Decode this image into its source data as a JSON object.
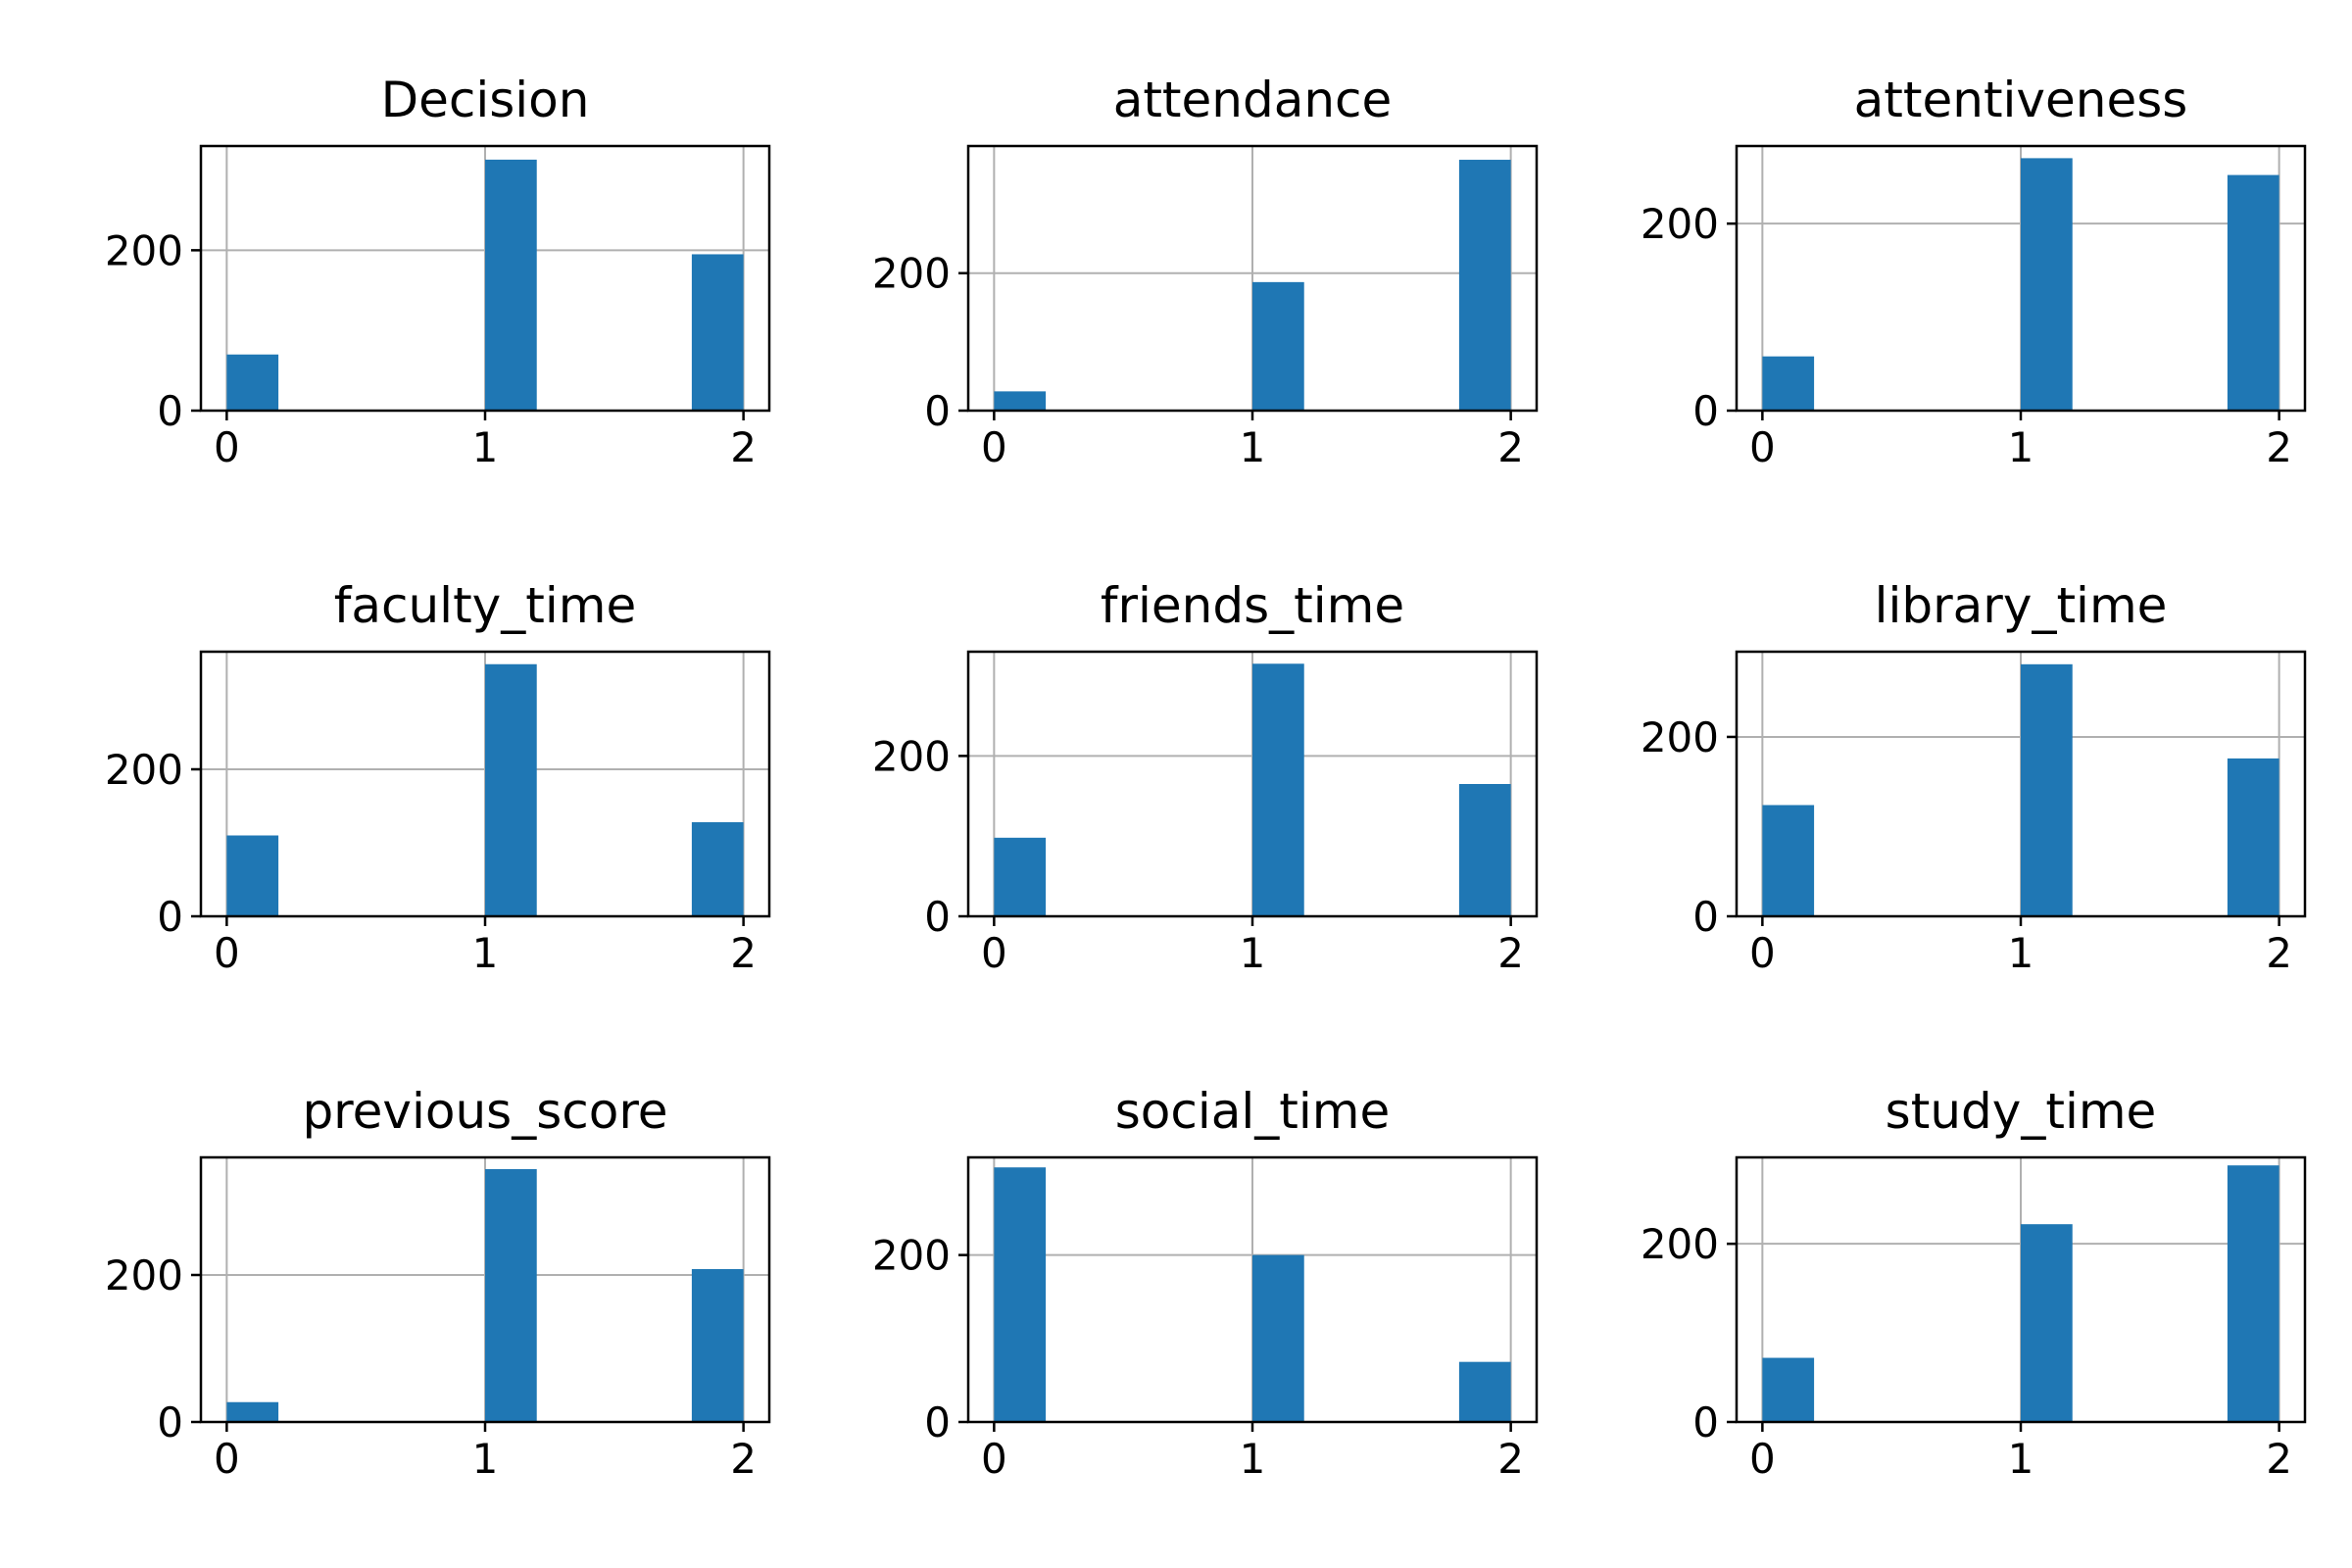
{
  "colors": {
    "bar": "#1f77b4",
    "grid": "#b0b0b0",
    "axis": "#000000"
  },
  "chart_data": [
    {
      "type": "bar",
      "title": "Decision",
      "ylim": [
        0,
        330
      ],
      "yticks": [
        0,
        200
      ],
      "xticks": [
        0,
        1,
        2
      ],
      "grid": true,
      "bins": [
        {
          "x0": 0.0,
          "x1": 0.2,
          "value": 70
        },
        {
          "x0": 1.0,
          "x1": 1.2,
          "value": 313
        },
        {
          "x0": 1.8,
          "x1": 2.0,
          "value": 195
        }
      ]
    },
    {
      "type": "bar",
      "title": "attendance",
      "ylim": [
        0,
        385
      ],
      "yticks": [
        0,
        200
      ],
      "xticks": [
        0,
        1,
        2
      ],
      "grid": true,
      "bins": [
        {
          "x0": 0.0,
          "x1": 0.2,
          "value": 28
        },
        {
          "x0": 1.0,
          "x1": 1.2,
          "value": 187
        },
        {
          "x0": 1.8,
          "x1": 2.0,
          "value": 365
        }
      ]
    },
    {
      "type": "bar",
      "title": "attentiveness",
      "ylim": [
        0,
        283
      ],
      "yticks": [
        0,
        200
      ],
      "xticks": [
        0,
        1,
        2
      ],
      "grid": true,
      "bins": [
        {
          "x0": 0.0,
          "x1": 0.2,
          "value": 58
        },
        {
          "x0": 1.0,
          "x1": 1.2,
          "value": 270
        },
        {
          "x0": 1.8,
          "x1": 2.0,
          "value": 252
        }
      ]
    },
    {
      "type": "bar",
      "title": "faculty_time",
      "ylim": [
        0,
        360
      ],
      "yticks": [
        0,
        200
      ],
      "xticks": [
        0,
        1,
        2
      ],
      "grid": true,
      "bins": [
        {
          "x0": 0.0,
          "x1": 0.2,
          "value": 110
        },
        {
          "x0": 1.0,
          "x1": 1.2,
          "value": 343
        },
        {
          "x0": 1.8,
          "x1": 2.0,
          "value": 128
        }
      ]
    },
    {
      "type": "bar",
      "title": "friends_time",
      "ylim": [
        0,
        330
      ],
      "yticks": [
        0,
        200
      ],
      "xticks": [
        0,
        1,
        2
      ],
      "grid": true,
      "bins": [
        {
          "x0": 0.0,
          "x1": 0.2,
          "value": 98
        },
        {
          "x0": 1.0,
          "x1": 1.2,
          "value": 315
        },
        {
          "x0": 1.8,
          "x1": 2.0,
          "value": 165
        }
      ]
    },
    {
      "type": "bar",
      "title": "library_time",
      "ylim": [
        0,
        295
      ],
      "yticks": [
        0,
        200
      ],
      "xticks": [
        0,
        1,
        2
      ],
      "grid": true,
      "bins": [
        {
          "x0": 0.0,
          "x1": 0.2,
          "value": 124
        },
        {
          "x0": 1.0,
          "x1": 1.2,
          "value": 281
        },
        {
          "x0": 1.8,
          "x1": 2.0,
          "value": 176
        }
      ]
    },
    {
      "type": "bar",
      "title": "previous_score",
      "ylim": [
        0,
        360
      ],
      "yticks": [
        0,
        200
      ],
      "xticks": [
        0,
        1,
        2
      ],
      "grid": true,
      "bins": [
        {
          "x0": 0.0,
          "x1": 0.2,
          "value": 27
        },
        {
          "x0": 1.0,
          "x1": 1.2,
          "value": 344
        },
        {
          "x0": 1.8,
          "x1": 2.0,
          "value": 208
        }
      ]
    },
    {
      "type": "bar",
      "title": "social_time",
      "ylim": [
        0,
        317
      ],
      "yticks": [
        0,
        200
      ],
      "xticks": [
        0,
        1,
        2
      ],
      "grid": true,
      "bins": [
        {
          "x0": 0.0,
          "x1": 0.2,
          "value": 305
        },
        {
          "x0": 1.0,
          "x1": 1.2,
          "value": 200
        },
        {
          "x0": 1.8,
          "x1": 2.0,
          "value": 72
        }
      ]
    },
    {
      "type": "bar",
      "title": "study_time",
      "ylim": [
        0,
        297
      ],
      "yticks": [
        0,
        200
      ],
      "xticks": [
        0,
        1,
        2
      ],
      "grid": true,
      "bins": [
        {
          "x0": 0.0,
          "x1": 0.2,
          "value": 72
        },
        {
          "x0": 1.0,
          "x1": 1.2,
          "value": 222
        },
        {
          "x0": 1.8,
          "x1": 2.0,
          "value": 288
        }
      ]
    }
  ]
}
